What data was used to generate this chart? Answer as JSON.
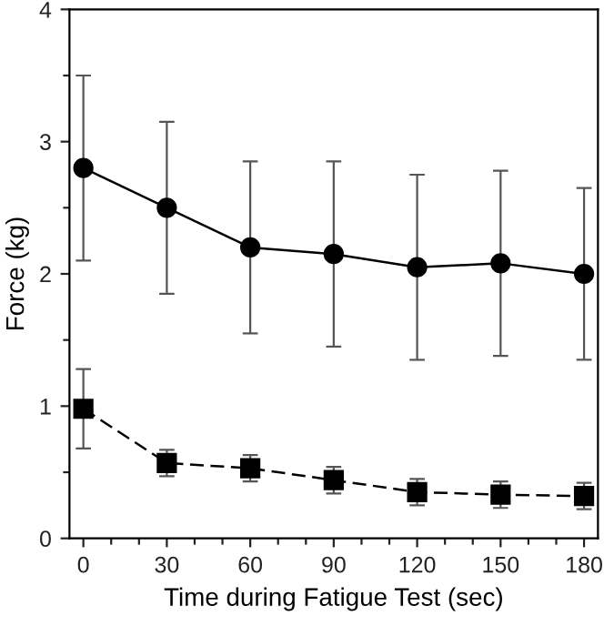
{
  "chart_data": {
    "type": "line",
    "xlabel": "Time during Fatigue Test (sec)",
    "ylabel": "Force (kg)",
    "x": [
      0,
      30,
      60,
      90,
      120,
      150,
      180
    ],
    "xlim": [
      -5,
      185
    ],
    "ylim": [
      0,
      4
    ],
    "xticks": [
      0,
      {
        "value": 10,
        "label": null
      },
      {
        "value": 20,
        "label": null
      },
      30,
      {
        "value": 40,
        "label": null
      },
      {
        "value": 50,
        "label": null
      },
      60,
      {
        "value": 70,
        "label": null
      },
      {
        "value": 80,
        "label": null
      },
      90,
      {
        "value": 100,
        "label": null
      },
      {
        "value": 110,
        "label": null
      },
      120,
      {
        "value": 130,
        "label": null
      },
      {
        "value": 140,
        "label": null
      },
      150,
      {
        "value": 160,
        "label": null
      },
      {
        "value": 170,
        "label": null
      },
      180
    ],
    "yticks": [
      0,
      {
        "value": 0.5,
        "label": null
      },
      1,
      {
        "value": 1.5,
        "label": null
      },
      2,
      {
        "value": 2.5,
        "label": null
      },
      3,
      {
        "value": 3.5,
        "label": null
      },
      4
    ],
    "grid": false,
    "series": [
      {
        "color": "#000000",
        "marker": "circle",
        "line_style": "solid",
        "values": [
          2.8,
          2.5,
          2.2,
          2.15,
          2.05,
          2.08,
          2.0
        ],
        "errors": [
          0.7,
          0.65,
          0.65,
          0.7,
          0.7,
          0.7,
          0.65
        ]
      },
      {
        "color": "#000000",
        "marker": "square",
        "line_style": "dashed",
        "values": [
          0.98,
          0.57,
          0.53,
          0.44,
          0.35,
          0.33,
          0.32
        ],
        "errors": [
          0.3,
          0.1,
          0.1,
          0.1,
          0.1,
          0.1,
          0.1
        ]
      }
    ]
  }
}
